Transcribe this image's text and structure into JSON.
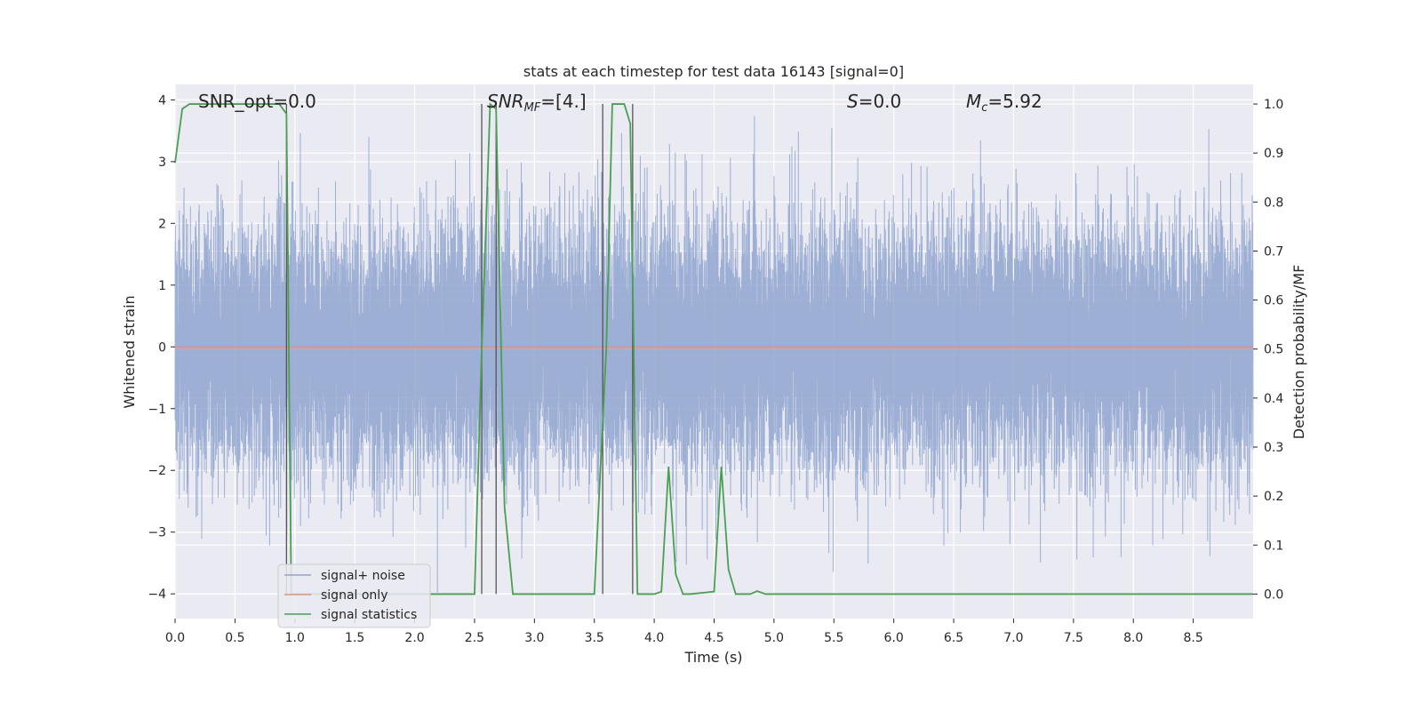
{
  "chart_data": {
    "type": "line",
    "title": "stats at each timestep for test data 16143 [signal=0]",
    "xlabel": "Time (s)",
    "ylabel_left": "Whitened strain",
    "ylabel_right": "Detection probability/MF",
    "xlim": [
      0,
      9.0
    ],
    "ylim_left": [
      -4.4,
      4.25
    ],
    "ylim_right": [
      -0.05,
      1.04
    ],
    "x_ticks": [
      0.0,
      0.5,
      1.0,
      1.5,
      2.0,
      2.5,
      3.0,
      3.5,
      4.0,
      4.5,
      5.0,
      5.5,
      6.0,
      6.5,
      7.0,
      7.5,
      8.0,
      8.5
    ],
    "x_tick_labels": [
      "0.0",
      "0.5",
      "1.0",
      "1.5",
      "2.0",
      "2.5",
      "3.0",
      "3.5",
      "4.0",
      "4.5",
      "5.0",
      "5.5",
      "6.0",
      "6.5",
      "7.0",
      "7.5",
      "8.0",
      "8.5"
    ],
    "y_left_ticks": [
      4,
      3,
      2,
      1,
      0,
      -1,
      -2,
      -3,
      -4
    ],
    "y_left_tick_labels": [
      "4",
      "3",
      "2",
      "1",
      "0",
      "−1",
      "−2",
      "−3",
      "−4"
    ],
    "y_right_ticks": [
      1.0,
      0.9,
      0.8,
      0.7,
      0.6,
      0.5,
      0.4,
      0.3,
      0.2,
      0.1,
      0.0
    ],
    "y_right_tick_labels": [
      "1.0",
      "0.9",
      "0.8",
      "0.7",
      "0.6",
      "0.5",
      "0.4",
      "0.3",
      "0.2",
      "0.1",
      "0.0"
    ],
    "grid": true,
    "legend_position": "lower-left",
    "annotations": {
      "snr_opt": "SNR_opt=0.0",
      "snr_mf_base": "SNR",
      "snr_mf_sub": "MF",
      "snr_mf_value": "=[4.]",
      "s_symbol": "S",
      "s_value": "=0.0",
      "mc_base": "M",
      "mc_sub": "c",
      "mc_value": "=5.92"
    },
    "series": [
      {
        "name": "signal+ noise",
        "axis": "left",
        "color": "#8fa5cf",
        "description_type": "noise",
        "sample_rate": 2048,
        "duration": 9.0,
        "stddev": 1.0
      },
      {
        "name": "signal only",
        "axis": "left",
        "color": "#e8907a",
        "x": [
          0.0,
          9.0
        ],
        "y": [
          0.0,
          0.0
        ]
      },
      {
        "name": "signal statistics",
        "axis": "right",
        "color": "#4aa052",
        "x": [
          0.0,
          0.06,
          0.12,
          0.87,
          0.93,
          0.97,
          1.03,
          1.1,
          1.2,
          1.3,
          2.5,
          2.56,
          2.63,
          2.68,
          2.75,
          2.82,
          3.0,
          3.5,
          3.6,
          3.65,
          3.75,
          3.8,
          3.86,
          4.0,
          4.06,
          4.12,
          4.18,
          4.24,
          4.3,
          4.5,
          4.56,
          4.62,
          4.68,
          4.8,
          4.86,
          4.93,
          5.0,
          9.0
        ],
        "y": [
          0.88,
          0.99,
          1.0,
          1.0,
          0.98,
          0.0,
          0.0,
          0.0,
          0.0,
          0.0,
          0.0,
          0.5,
          1.0,
          0.99,
          0.18,
          0.0,
          0.0,
          0.0,
          0.5,
          1.0,
          1.0,
          0.96,
          0.0,
          0.0,
          0.005,
          0.26,
          0.04,
          0.0,
          0.0,
          0.005,
          0.26,
          0.05,
          0.0,
          0.0,
          0.006,
          0.0,
          0.0,
          0.0
        ]
      }
    ],
    "vertical_markers": [
      0.93,
      2.56,
      2.68,
      3.57,
      3.82
    ]
  }
}
